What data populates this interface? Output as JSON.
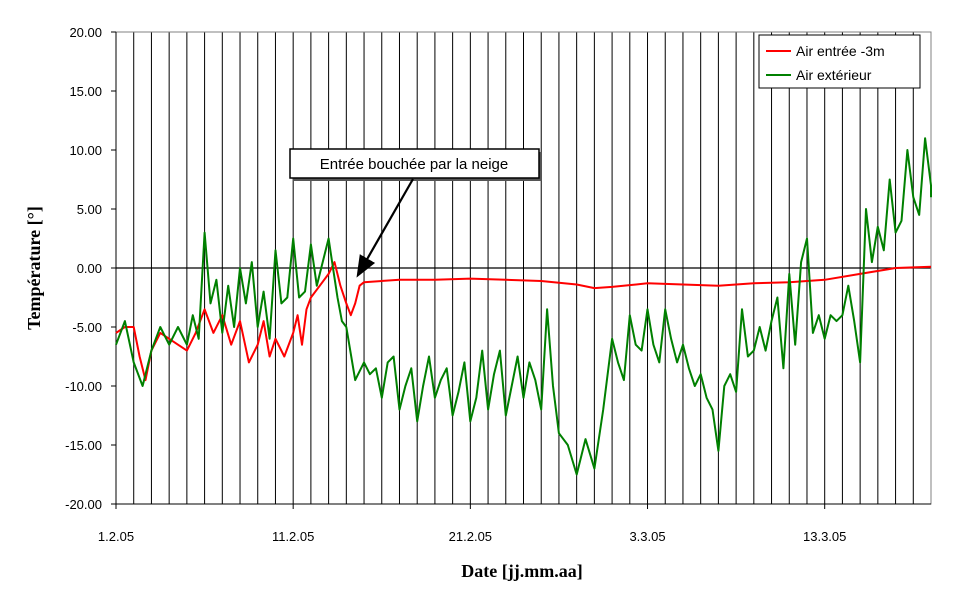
{
  "chart_data": {
    "type": "line",
    "xlabel": "Date [jj.mm.aa]",
    "ylabel": "Température [°]",
    "x_range": [
      "2005-02-01",
      "2005-03-19"
    ],
    "ylim": [
      -20,
      20
    ],
    "y_ticks": [
      "20.00",
      "15.00",
      "10.00",
      "5.00",
      "0.00",
      "-5.00",
      "-10.00",
      "-15.00",
      "-20.00"
    ],
    "x_ticks": [
      {
        "date": "2005-02-01",
        "label": "1.2.05"
      },
      {
        "date": "2005-02-11",
        "label": "11.2.05"
      },
      {
        "date": "2005-02-21",
        "label": "21.2.05"
      },
      {
        "date": "2005-03-03",
        "label": "3.3.05"
      },
      {
        "date": "2005-03-13",
        "label": "13.3.05"
      }
    ],
    "grid": "vertical-daily",
    "legend_position": "top-right",
    "annotation": {
      "text": "Entrée bouchée par la neige",
      "date": "2005-02-14",
      "value": -1.0
    },
    "series": [
      {
        "name": "Air entrée -3m",
        "color": "#ff0000",
        "points": [
          [
            "2005-02-01",
            -5.5
          ],
          [
            "2005-02-01",
            -5.0
          ],
          [
            "2005-02-02",
            -5.0
          ],
          [
            "2005-02-02",
            -7.5
          ],
          [
            "2005-02-02",
            -9.5
          ],
          [
            "2005-02-03",
            -7.0
          ],
          [
            "2005-02-03",
            -5.5
          ],
          [
            "2005-02-04",
            -6.0
          ],
          [
            "2005-02-04",
            -6.5
          ],
          [
            "2005-02-05",
            -7.0
          ],
          [
            "2005-02-05",
            -5.5
          ],
          [
            "2005-02-06",
            -3.5
          ],
          [
            "2005-02-06",
            -5.5
          ],
          [
            "2005-02-07",
            -4.0
          ],
          [
            "2005-02-07",
            -6.5
          ],
          [
            "2005-02-08",
            -4.5
          ],
          [
            "2005-02-08",
            -8.0
          ],
          [
            "2005-02-09",
            -6.5
          ],
          [
            "2005-02-09",
            -4.5
          ],
          [
            "2005-02-09",
            -7.5
          ],
          [
            "2005-02-10",
            -6.0
          ],
          [
            "2005-02-10",
            -7.5
          ],
          [
            "2005-02-11",
            -5.5
          ],
          [
            "2005-02-11",
            -4.0
          ],
          [
            "2005-02-11",
            -6.5
          ],
          [
            "2005-02-11",
            -3.5
          ],
          [
            "2005-02-12",
            -2.5
          ],
          [
            "2005-02-12",
            -1.5
          ],
          [
            "2005-02-13",
            -0.5
          ],
          [
            "2005-02-13",
            0.5
          ],
          [
            "2005-02-13",
            -1.5
          ],
          [
            "2005-02-14",
            -3.0
          ],
          [
            "2005-02-14",
            -4.0
          ],
          [
            "2005-02-14",
            -3.0
          ],
          [
            "2005-02-14",
            -1.5
          ],
          [
            "2005-02-15",
            -1.2
          ],
          [
            "2005-02-17",
            -1.0
          ],
          [
            "2005-02-19",
            -1.0
          ],
          [
            "2005-02-21",
            -0.9
          ],
          [
            "2005-02-23",
            -1.0
          ],
          [
            "2005-02-25",
            -1.1
          ],
          [
            "2005-02-27",
            -1.4
          ],
          [
            "2005-02-28",
            -1.7
          ],
          [
            "2005-03-01",
            -1.6
          ],
          [
            "2005-03-03",
            -1.3
          ],
          [
            "2005-03-05",
            -1.4
          ],
          [
            "2005-03-07",
            -1.5
          ],
          [
            "2005-03-09",
            -1.3
          ],
          [
            "2005-03-11",
            -1.2
          ],
          [
            "2005-03-13",
            -1.0
          ],
          [
            "2005-03-15",
            -0.5
          ],
          [
            "2005-03-17",
            0.0
          ],
          [
            "2005-03-19",
            0.1
          ]
        ]
      },
      {
        "name": "Air extérieur",
        "color": "#008000",
        "points": [
          [
            "2005-02-01",
            -6.5
          ],
          [
            "2005-02-01",
            -4.5
          ],
          [
            "2005-02-02",
            -8.0
          ],
          [
            "2005-02-02",
            -10.0
          ],
          [
            "2005-02-03",
            -7.0
          ],
          [
            "2005-02-03",
            -5.0
          ],
          [
            "2005-02-04",
            -6.5
          ],
          [
            "2005-02-04",
            -5.0
          ],
          [
            "2005-02-05",
            -6.5
          ],
          [
            "2005-02-05",
            -4.0
          ],
          [
            "2005-02-05",
            -6.0
          ],
          [
            "2005-02-06",
            3.0
          ],
          [
            "2005-02-06",
            -3.0
          ],
          [
            "2005-02-06",
            -1.0
          ],
          [
            "2005-02-07",
            -5.5
          ],
          [
            "2005-02-07",
            -1.5
          ],
          [
            "2005-02-07",
            -5.0
          ],
          [
            "2005-02-08",
            0.0
          ],
          [
            "2005-02-08",
            -3.0
          ],
          [
            "2005-02-08",
            0.5
          ],
          [
            "2005-02-09",
            -5.0
          ],
          [
            "2005-02-09",
            -2.0
          ],
          [
            "2005-02-09",
            -6.0
          ],
          [
            "2005-02-10",
            1.5
          ],
          [
            "2005-02-10",
            -3.0
          ],
          [
            "2005-02-10",
            -2.5
          ],
          [
            "2005-02-11",
            2.5
          ],
          [
            "2005-02-11",
            -2.5
          ],
          [
            "2005-02-11",
            -2.0
          ],
          [
            "2005-02-12",
            2.0
          ],
          [
            "2005-02-12",
            -1.5
          ],
          [
            "2005-02-12",
            0.5
          ],
          [
            "2005-02-13",
            2.5
          ],
          [
            "2005-02-13",
            0.0
          ],
          [
            "2005-02-13",
            -2.5
          ],
          [
            "2005-02-13",
            -4.5
          ],
          [
            "2005-02-14",
            -5.0
          ],
          [
            "2005-02-14",
            -9.5
          ],
          [
            "2005-02-15",
            -8.0
          ],
          [
            "2005-02-15",
            -9.0
          ],
          [
            "2005-02-15",
            -8.5
          ],
          [
            "2005-02-16",
            -11.0
          ],
          [
            "2005-02-16",
            -8.0
          ],
          [
            "2005-02-16",
            -7.5
          ],
          [
            "2005-02-17",
            -12.0
          ],
          [
            "2005-02-17",
            -10.0
          ],
          [
            "2005-02-17",
            -8.5
          ],
          [
            "2005-02-18",
            -13.0
          ],
          [
            "2005-02-18",
            -10.0
          ],
          [
            "2005-02-18",
            -7.5
          ],
          [
            "2005-02-19",
            -11.0
          ],
          [
            "2005-02-19",
            -9.5
          ],
          [
            "2005-02-19",
            -8.5
          ],
          [
            "2005-02-20",
            -12.5
          ],
          [
            "2005-02-20",
            -10.5
          ],
          [
            "2005-02-20",
            -8.0
          ],
          [
            "2005-02-21",
            -13.0
          ],
          [
            "2005-02-21",
            -11.0
          ],
          [
            "2005-02-21",
            -7.0
          ],
          [
            "2005-02-22",
            -12.0
          ],
          [
            "2005-02-22",
            -9.0
          ],
          [
            "2005-02-22",
            -7.0
          ],
          [
            "2005-02-23",
            -12.5
          ],
          [
            "2005-02-23",
            -10.0
          ],
          [
            "2005-02-23",
            -7.5
          ],
          [
            "2005-02-24",
            -11.0
          ],
          [
            "2005-02-24",
            -8.0
          ],
          [
            "2005-02-24",
            -9.5
          ],
          [
            "2005-02-25",
            -12.0
          ],
          [
            "2005-02-25",
            -3.5
          ],
          [
            "2005-02-25",
            -10.0
          ],
          [
            "2005-02-26",
            -14.0
          ],
          [
            "2005-02-26",
            -15.0
          ],
          [
            "2005-02-27",
            -17.5
          ],
          [
            "2005-02-27",
            -14.5
          ],
          [
            "2005-02-28",
            -17.0
          ],
          [
            "2005-02-28",
            -12.0
          ],
          [
            "2005-03-01",
            -6.0
          ],
          [
            "2005-03-01",
            -8.0
          ],
          [
            "2005-03-01",
            -9.5
          ],
          [
            "2005-03-02",
            -4.0
          ],
          [
            "2005-03-02",
            -6.5
          ],
          [
            "2005-03-02",
            -7.0
          ],
          [
            "2005-03-03",
            -3.5
          ],
          [
            "2005-03-03",
            -6.5
          ],
          [
            "2005-03-03",
            -8.0
          ],
          [
            "2005-03-04",
            -3.5
          ],
          [
            "2005-03-04",
            -6.0
          ],
          [
            "2005-03-04",
            -8.0
          ],
          [
            "2005-03-05",
            -6.5
          ],
          [
            "2005-03-05",
            -8.5
          ],
          [
            "2005-03-05",
            -10.0
          ],
          [
            "2005-03-06",
            -9.0
          ],
          [
            "2005-03-06",
            -11.0
          ],
          [
            "2005-03-06",
            -12.0
          ],
          [
            "2005-03-07",
            -15.5
          ],
          [
            "2005-03-07",
            -10.0
          ],
          [
            "2005-03-07",
            -9.0
          ],
          [
            "2005-03-08",
            -10.5
          ],
          [
            "2005-03-08",
            -3.5
          ],
          [
            "2005-03-08",
            -7.5
          ],
          [
            "2005-03-09",
            -7.0
          ],
          [
            "2005-03-09",
            -5.0
          ],
          [
            "2005-03-09",
            -7.0
          ],
          [
            "2005-03-10",
            -4.5
          ],
          [
            "2005-03-10",
            -2.5
          ],
          [
            "2005-03-10",
            -8.5
          ],
          [
            "2005-03-11",
            -0.5
          ],
          [
            "2005-03-11",
            -6.5
          ],
          [
            "2005-03-11",
            0.5
          ],
          [
            "2005-03-12",
            2.5
          ],
          [
            "2005-03-12",
            -5.5
          ],
          [
            "2005-03-12",
            -4.0
          ],
          [
            "2005-03-13",
            -6.0
          ],
          [
            "2005-03-13",
            -4.0
          ],
          [
            "2005-03-13",
            -4.5
          ],
          [
            "2005-03-14",
            -4.0
          ],
          [
            "2005-03-14",
            -1.5
          ],
          [
            "2005-03-14",
            -4.5
          ],
          [
            "2005-03-15",
            -8.0
          ],
          [
            "2005-03-15",
            5.0
          ],
          [
            "2005-03-15",
            0.5
          ],
          [
            "2005-03-16",
            3.5
          ],
          [
            "2005-03-16",
            1.5
          ],
          [
            "2005-03-16",
            7.5
          ],
          [
            "2005-03-17",
            3.0
          ],
          [
            "2005-03-17",
            4.0
          ],
          [
            "2005-03-17",
            10.0
          ],
          [
            "2005-03-18",
            6.0
          ],
          [
            "2005-03-18",
            4.5
          ],
          [
            "2005-03-18",
            11.0
          ],
          [
            "2005-03-19",
            7.0
          ],
          [
            "2005-03-19",
            6.0
          ]
        ]
      }
    ]
  }
}
